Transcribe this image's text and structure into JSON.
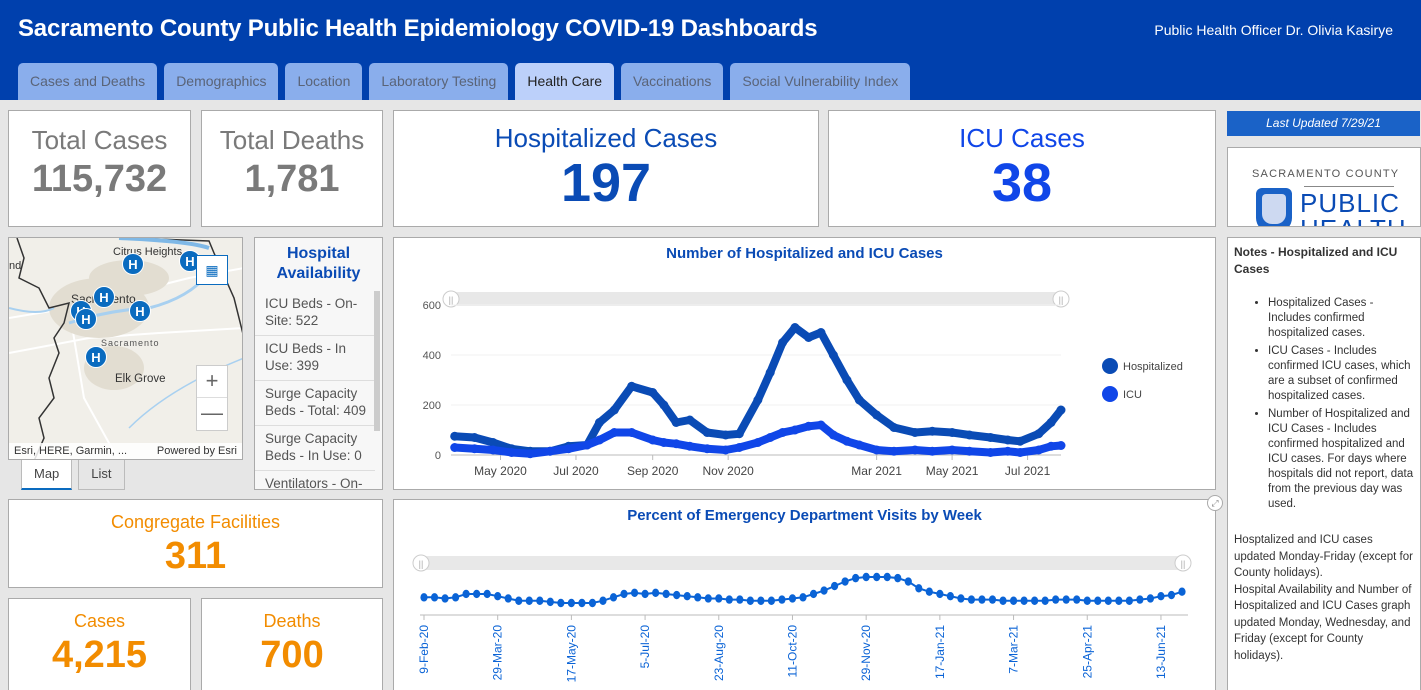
{
  "header": {
    "title": "Sacramento County Public Health Epidemiology COVID-19 Dashboards",
    "officer": "Public Health Officer Dr. Olivia Kasirye"
  },
  "tabs": [
    {
      "label": "Cases and Deaths",
      "active": false
    },
    {
      "label": "Demographics",
      "active": false
    },
    {
      "label": "Location",
      "active": false
    },
    {
      "label": "Laboratory Testing",
      "active": false
    },
    {
      "label": "Health Care",
      "active": true
    },
    {
      "label": "Vaccinations",
      "active": false
    },
    {
      "label": "Social Vulnerability Index",
      "active": false
    }
  ],
  "kpis": {
    "total_cases": {
      "label": "Total Cases",
      "value": "115,732"
    },
    "total_deaths": {
      "label": "Total Deaths",
      "value": "1,781"
    },
    "hospitalized": {
      "label": "Hospitalized Cases",
      "value": "197"
    },
    "icu": {
      "label": "ICU Cases",
      "value": "38"
    },
    "congregate": {
      "label": "Congregate Facilities",
      "value": "311"
    },
    "cong_cases": {
      "label": "Cases",
      "value": "4,215"
    },
    "cong_deaths": {
      "label": "Deaths",
      "value": "700"
    }
  },
  "last_updated": "Last Updated 7/29/21",
  "logo": {
    "county": "SACRAMENTO COUNTY",
    "line1": "PUBLIC",
    "line2": "HEALTH"
  },
  "map": {
    "places": [
      "Citrus Heights",
      "Sacramento",
      "Sacramento",
      "Elk Grove",
      "nd"
    ],
    "pin_label": "H",
    "attribution": "Esri, HERE, Garmin, ...",
    "powered_by": "Powered by Esri",
    "zoom_in": "+",
    "zoom_out": "—",
    "tabs": [
      {
        "label": "Map",
        "active": true
      },
      {
        "label": "List",
        "active": false
      }
    ]
  },
  "hospital_availability": {
    "title": "Hospital Availability",
    "items": [
      "ICU Beds - On-Site: 522",
      "ICU Beds - In Use: 399",
      "Surge Capacity Beds - Total: 409",
      "Surge Capacity Beds - In Use: 0",
      "Ventilators - On-"
    ]
  },
  "notes": {
    "title": "Notes - Hospitalized and ICU Cases",
    "bullets": [
      "Hospitalized Cases - Includes confirmed hospitalized cases.",
      "ICU Cases - Includes confirmed ICU cases, which are a subset of confirmed hospitalized cases.",
      "Number of Hospitalized and ICU Cases - Includes confirmed hospitalized and ICU cases. For days where hospitals did not report, data from the previous day was used."
    ],
    "para1": "Hosptalized and ICU cases updated Monday-Friday (except for County holidays).",
    "para2": "Hospital Availability and Number of Hospitalized and ICU Cases graph updated Monday, Wednesday, and Friday (except for County holidays)."
  },
  "colors": {
    "header": "#0040ad",
    "hospitalized": "#0a4bb5",
    "icu": "#1046e8",
    "orange": "#f28c00",
    "ed_series": "#0a63d6"
  },
  "chart_data": [
    {
      "type": "line",
      "title": "Number of Hospitalized and ICU Cases",
      "xlabel": "",
      "ylabel": "",
      "ylim": [
        0,
        600
      ],
      "yticks": [
        0,
        200,
        400,
        600
      ],
      "xticks": [
        "May 2020",
        "Jul 2020",
        "Sep 2020",
        "Nov 2020",
        "Mar 2021",
        "May 2021",
        "Jul 2021"
      ],
      "x": [
        "2020-03-25",
        "2020-04-10",
        "2020-04-25",
        "2020-05-10",
        "2020-05-25",
        "2020-06-10",
        "2020-06-25",
        "2020-07-10",
        "2020-07-20",
        "2020-08-01",
        "2020-08-15",
        "2020-09-01",
        "2020-09-10",
        "2020-09-20",
        "2020-10-01",
        "2020-10-15",
        "2020-10-30",
        "2020-11-10",
        "2020-11-25",
        "2020-12-05",
        "2020-12-15",
        "2020-12-25",
        "2021-01-05",
        "2021-01-15",
        "2021-01-25",
        "2021-02-05",
        "2021-02-15",
        "2021-03-01",
        "2021-03-15",
        "2021-04-01",
        "2021-04-15",
        "2021-05-01",
        "2021-05-15",
        "2021-06-01",
        "2021-06-15",
        "2021-06-25",
        "2021-07-10",
        "2021-07-20",
        "2021-07-28"
      ],
      "series": [
        {
          "name": "Hospitalized",
          "values": [
            75,
            70,
            50,
            25,
            15,
            15,
            35,
            40,
            130,
            180,
            275,
            250,
            200,
            130,
            140,
            90,
            80,
            85,
            220,
            330,
            450,
            510,
            470,
            490,
            400,
            300,
            220,
            160,
            110,
            90,
            95,
            90,
            80,
            70,
            60,
            55,
            85,
            130,
            180
          ]
        },
        {
          "name": "ICU",
          "values": [
            30,
            25,
            20,
            10,
            5,
            15,
            25,
            40,
            60,
            90,
            90,
            60,
            50,
            45,
            35,
            25,
            20,
            30,
            50,
            70,
            90,
            100,
            115,
            120,
            80,
            55,
            40,
            20,
            15,
            20,
            15,
            20,
            15,
            10,
            15,
            10,
            20,
            35,
            38
          ]
        }
      ],
      "legend": "right"
    },
    {
      "type": "line",
      "title": "Percent of Emergency Department Visits by Week",
      "xlabel": "",
      "ylabel": "",
      "xticks": [
        "9-Feb-20",
        "29-Mar-20",
        "17-May-20",
        "5-Jul-20",
        "23-Aug-20",
        "11-Oct-20",
        "29-Nov-20",
        "17-Jan-21",
        "7-Mar-21",
        "25-Apr-21",
        "13-Jun-21"
      ],
      "series": [
        {
          "name": "ED Visits %",
          "values": [
            2.6,
            2.6,
            2.5,
            2.6,
            2.9,
            2.9,
            2.9,
            2.7,
            2.5,
            2.3,
            2.3,
            2.3,
            2.2,
            2.1,
            2.1,
            2.1,
            2.1,
            2.3,
            2.6,
            2.9,
            3.0,
            2.9,
            3.0,
            2.9,
            2.8,
            2.7,
            2.6,
            2.5,
            2.5,
            2.4,
            2.4,
            2.3,
            2.3,
            2.3,
            2.4,
            2.5,
            2.6,
            2.9,
            3.2,
            3.6,
            4.0,
            4.3,
            4.4,
            4.4,
            4.4,
            4.3,
            4.0,
            3.4,
            3.1,
            2.9,
            2.7,
            2.5,
            2.4,
            2.4,
            2.4,
            2.3,
            2.3,
            2.3,
            2.3,
            2.3,
            2.4,
            2.4,
            2.4,
            2.3,
            2.3,
            2.3,
            2.3,
            2.3,
            2.4,
            2.5,
            2.7,
            2.8,
            3.1
          ]
        }
      ]
    }
  ]
}
